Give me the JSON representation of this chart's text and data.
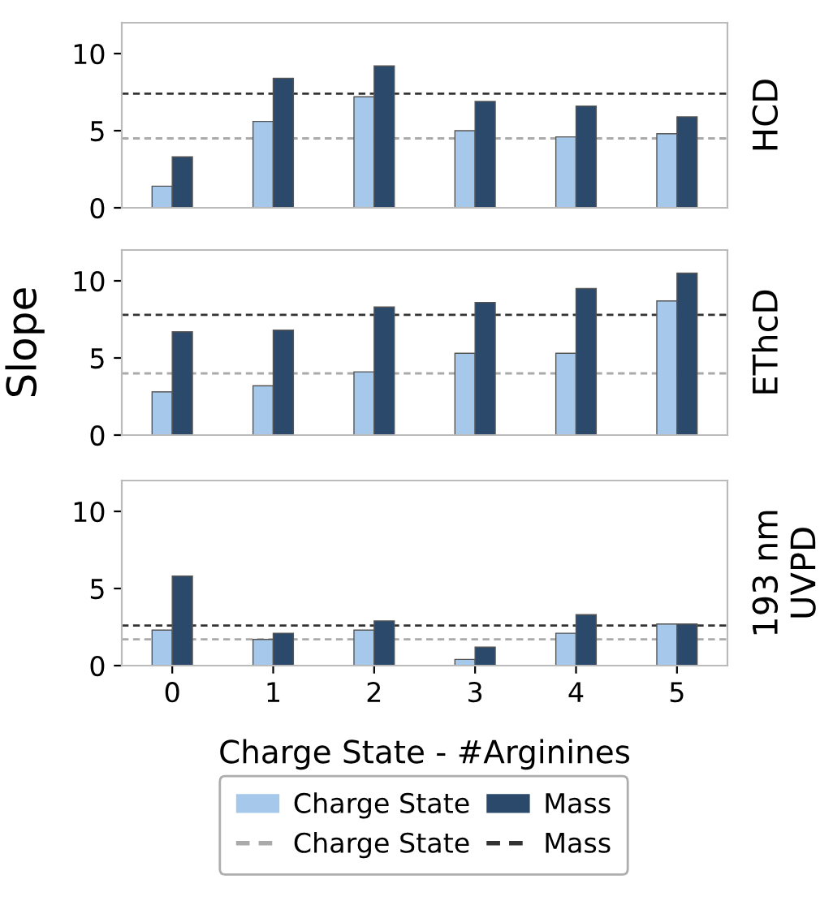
{
  "chart_data": [
    {
      "type": "bar",
      "y2label": "HCD",
      "categories": [
        "0",
        "1",
        "2",
        "3",
        "4",
        "5"
      ],
      "ylim": [
        0,
        12
      ],
      "yticks": [
        0,
        5,
        10
      ],
      "tick_labels": "y",
      "grid": false,
      "legend": "bottom",
      "series": [
        {
          "name": "Charge State",
          "color": "#a6c8ea",
          "values": [
            1.4,
            5.6,
            7.2,
            5.0,
            4.6,
            4.8
          ]
        },
        {
          "name": "Mass",
          "color": "#2b4a6b",
          "values": [
            3.3,
            8.4,
            9.2,
            6.9,
            6.6,
            5.9
          ]
        }
      ],
      "ref_lines": [
        {
          "axis": "y",
          "value": 4.5,
          "label": "Charge State",
          "color": "#aaaaaa",
          "line_style": "dashed"
        },
        {
          "axis": "y",
          "value": 7.4,
          "label": "Mass",
          "color": "#333333",
          "line_style": "dashed"
        }
      ]
    },
    {
      "type": "bar",
      "ylabel": "Slope",
      "y2label": "EThcD",
      "categories": [
        "0",
        "1",
        "2",
        "3",
        "4",
        "5"
      ],
      "ylim": [
        0,
        12
      ],
      "yticks": [
        0,
        5,
        10
      ],
      "tick_labels": "y",
      "grid": false,
      "series": [
        {
          "color": "#a6c8ea",
          "values": [
            2.8,
            3.2,
            4.1,
            5.3,
            5.3,
            8.7
          ]
        },
        {
          "color": "#2b4a6b",
          "values": [
            6.7,
            6.8,
            8.3,
            8.6,
            9.5,
            10.5
          ]
        }
      ],
      "ref_lines": [
        {
          "axis": "y",
          "value": 4.0,
          "color": "#aaaaaa",
          "line_style": "dashed"
        },
        {
          "axis": "y",
          "value": 7.8,
          "color": "#333333",
          "line_style": "dashed"
        }
      ]
    },
    {
      "type": "bar",
      "xlabel": "Charge State - #Arginines",
      "y2label": "193 nm\nUVPD",
      "categories": [
        "0",
        "1",
        "2",
        "3",
        "4",
        "5"
      ],
      "ylim": [
        0,
        12
      ],
      "yticks": [
        0,
        5,
        10
      ],
      "grid": false,
      "series": [
        {
          "color": "#a6c8ea",
          "values": [
            2.3,
            1.7,
            2.3,
            0.4,
            2.1,
            2.7
          ]
        },
        {
          "color": "#2b4a6b",
          "values": [
            5.8,
            2.1,
            2.9,
            1.2,
            3.3,
            2.7
          ]
        }
      ],
      "ref_lines": [
        {
          "axis": "y",
          "value": 1.7,
          "color": "#aaaaaa",
          "line_style": "dashed"
        },
        {
          "axis": "y",
          "value": 2.6,
          "color": "#333333",
          "line_style": "dashed"
        }
      ]
    }
  ]
}
